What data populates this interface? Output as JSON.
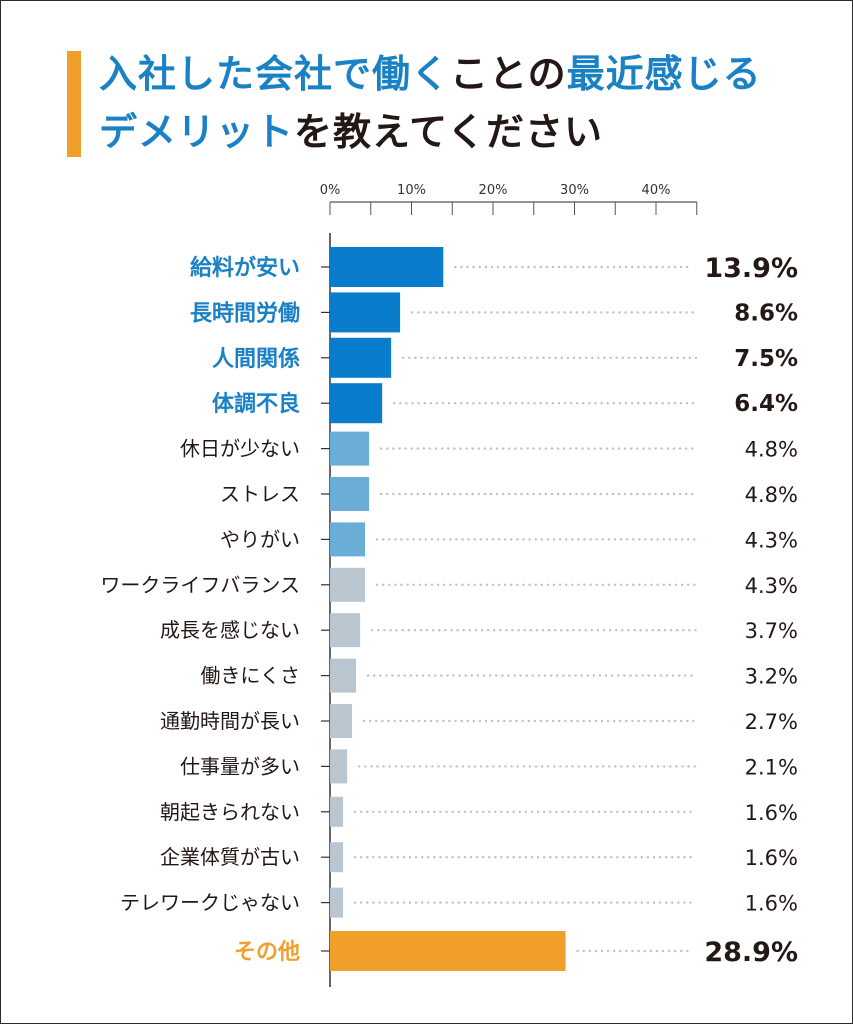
{
  "title": {
    "line1": [
      {
        "text": "入社した会社で働く",
        "color": "blue"
      },
      {
        "text": "ことの",
        "color": "black"
      },
      {
        "text": "最近感じる",
        "color": "blue"
      }
    ],
    "line2": [
      {
        "text": "デメリット",
        "color": "blue"
      },
      {
        "text": "を教えてください",
        "color": "black"
      }
    ]
  },
  "colors": {
    "title_blue": "#1a82c4",
    "title_black": "#231815",
    "accent_orange": "#f0a02a",
    "bar_top": "#0a7ccc",
    "bar_mid": "#6aaed8",
    "bar_low": "#b9c6d0",
    "bar_other": "#f0a02a",
    "label_top": "#1a82c4",
    "label_other": "#f0a02a",
    "label_normal": "#231815",
    "leader": "#b7c3cd",
    "axis": "#555555"
  },
  "chart_data": {
    "type": "bar",
    "orientation": "horizontal",
    "axis_ticks": [
      "0%",
      "10%",
      "20%",
      "30%",
      "40%"
    ],
    "xlim": [
      0,
      45
    ],
    "unit": "%",
    "categories": [
      "給料が安い",
      "長時間労働",
      "人間関係",
      "体調不良",
      "休日が少ない",
      "ストレス",
      "やりがい",
      "ワークライフバランス",
      "成長を感じない",
      "働きにくさ",
      "通勤時間が長い",
      "仕事量が多い",
      "朝起きられない",
      "企業体質が古い",
      "テレワークじゃない",
      "その他"
    ],
    "values": [
      13.9,
      8.6,
      7.5,
      6.4,
      4.8,
      4.8,
      4.3,
      4.3,
      3.7,
      3.2,
      2.7,
      2.1,
      1.6,
      1.6,
      1.6,
      28.9
    ],
    "value_labels": [
      "13.9%",
      "8.6%",
      "7.5%",
      "6.4%",
      "4.8%",
      "4.8%",
      "4.3%",
      "4.3%",
      "3.7%",
      "3.2%",
      "2.7%",
      "2.1%",
      "1.6%",
      "1.6%",
      "1.6%",
      "28.9%"
    ],
    "tiers": [
      "top",
      "top",
      "top",
      "top",
      "mid",
      "mid",
      "mid",
      "low",
      "low",
      "low",
      "low",
      "low",
      "low",
      "low",
      "low",
      "other"
    ]
  }
}
